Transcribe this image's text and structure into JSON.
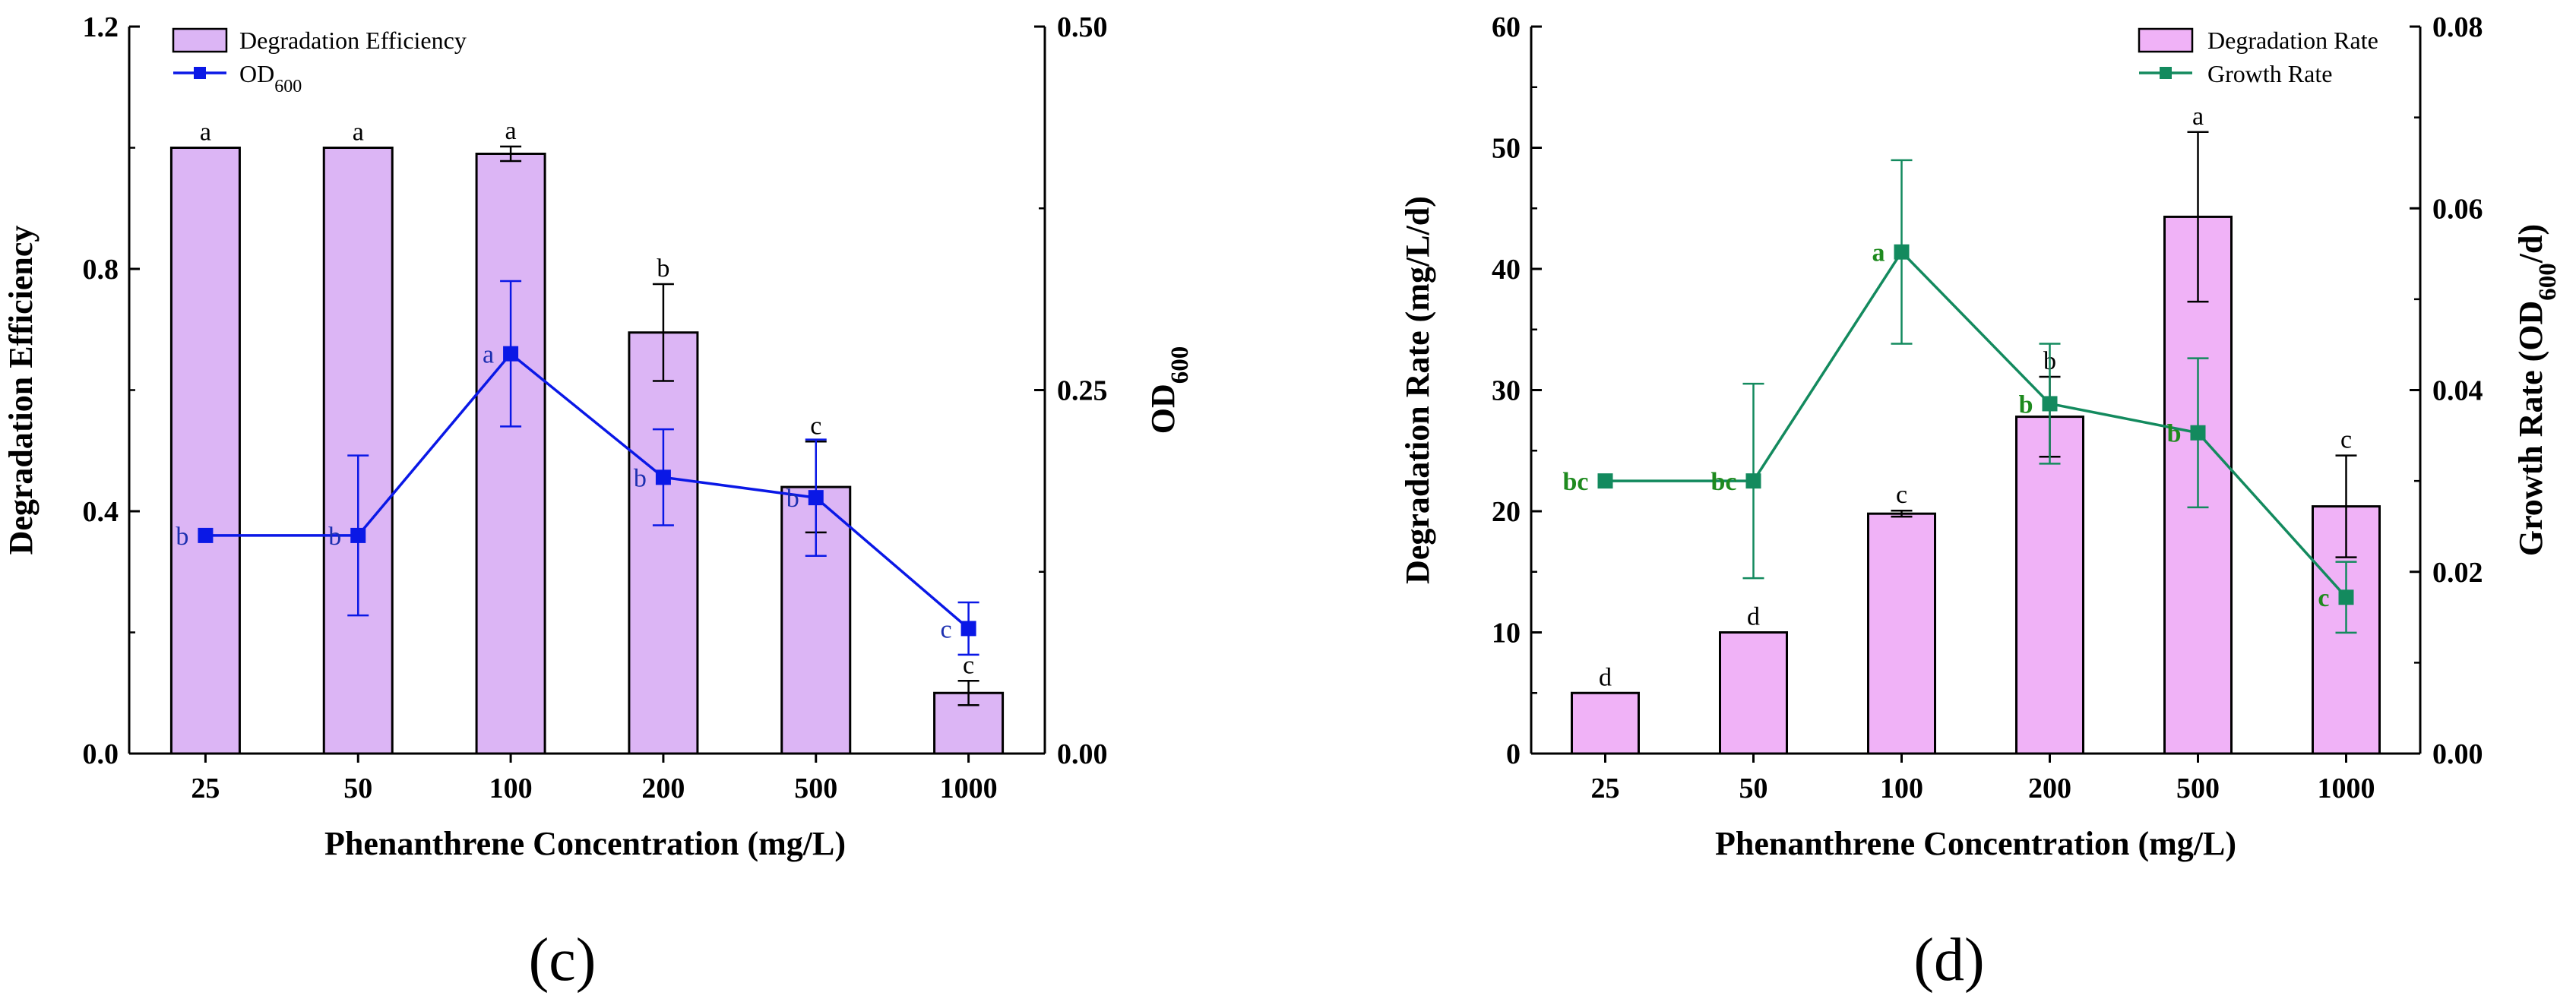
{
  "chart_data": [
    {
      "type": "bar",
      "panel_label": "(c)",
      "xlabel": "Phenanthrene Concentration (mg/L)",
      "ylabel": "Degradation Efficiency",
      "y2label": "OD600",
      "categories": [
        "25",
        "50",
        "100",
        "200",
        "500",
        "1000"
      ],
      "ylim": [
        0,
        1.2
      ],
      "yticks": [
        "0.0",
        "0.4",
        "0.8",
        "1.2"
      ],
      "y2lim": [
        0,
        0.5
      ],
      "y2ticks": [
        "0.00",
        "0.25",
        "0.50"
      ],
      "legend_position": "top-left",
      "colors": {
        "bar": "#dcb5f5",
        "line": "#0a18e6",
        "bar_letter": "#000000",
        "line_letter": "#1c2fb0"
      },
      "series": [
        {
          "name": "Degradation Efficiency",
          "kind": "bar",
          "axis": "left",
          "values": [
            1.0,
            1.0,
            0.99,
            0.695,
            0.44,
            0.1
          ],
          "errors": [
            0,
            0,
            0.012,
            0.08,
            0.075,
            0.02
          ],
          "letters": [
            "a",
            "a",
            "a",
            "b",
            "c",
            "c"
          ]
        },
        {
          "name": "OD600",
          "kind": "line",
          "axis": "right",
          "values": [
            0.15,
            0.15,
            0.275,
            0.19,
            0.176,
            0.086
          ],
          "errors": [
            0,
            0.055,
            0.05,
            0.033,
            0.04,
            0.018
          ],
          "letters": [
            "b",
            "b",
            "a",
            "b",
            "b",
            "c"
          ]
        }
      ]
    },
    {
      "type": "bar",
      "panel_label": "(d)",
      "xlabel": "Phenanthrene Concentration (mg/L)",
      "ylabel": "Degradation Rate (mg/L/d)",
      "y2label": "Growth Rate (OD600/d)",
      "categories": [
        "25",
        "50",
        "100",
        "200",
        "500",
        "1000"
      ],
      "ylim": [
        0,
        60
      ],
      "yticks": [
        "0",
        "10",
        "20",
        "30",
        "40",
        "50",
        "60"
      ],
      "y2lim": [
        0,
        0.08
      ],
      "y2ticks": [
        "0.00",
        "0.02",
        "0.04",
        "0.06",
        "0.08"
      ],
      "legend_position": "top-right",
      "colors": {
        "bar": "#f0b2f7",
        "line": "#138a5e",
        "bar_letter": "#000000",
        "line_letter": "#1e8a1e"
      },
      "series": [
        {
          "name": "Degradation Rate",
          "kind": "bar",
          "axis": "left",
          "values": [
            5.0,
            10.0,
            19.8,
            27.8,
            44.3,
            20.4
          ],
          "errors": [
            0,
            0,
            0.25,
            3.3,
            7.0,
            4.2
          ],
          "letters": [
            "d",
            "d",
            "c",
            "b",
            "a",
            "c"
          ]
        },
        {
          "name": "Growth Rate",
          "kind": "line",
          "axis": "right",
          "values": [
            0.03,
            0.03,
            0.0552,
            0.0385,
            0.0353,
            0.0172
          ],
          "errors": [
            0,
            0.0107,
            0.0101,
            0.0066,
            0.0082,
            0.0039
          ],
          "letters": [
            "bc",
            "bc",
            "a",
            "b",
            "b",
            "c"
          ]
        }
      ]
    }
  ]
}
